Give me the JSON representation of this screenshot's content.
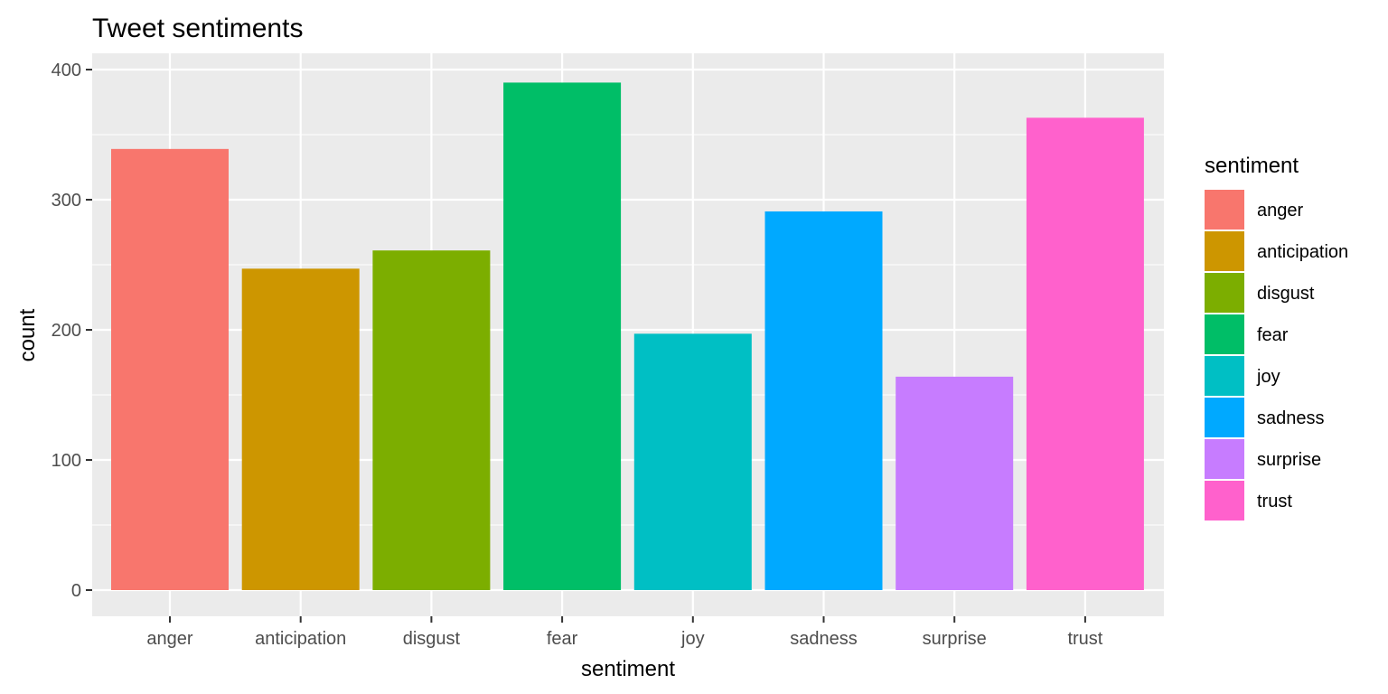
{
  "chart_data": {
    "type": "bar",
    "title": "Tweet sentiments",
    "xlabel": "sentiment",
    "ylabel": "count",
    "categories": [
      "anger",
      "anticipation",
      "disgust",
      "fear",
      "joy",
      "sadness",
      "surprise",
      "trust"
    ],
    "values": [
      339,
      247,
      261,
      390,
      197,
      291,
      164,
      363
    ],
    "colors": [
      "#F8766D",
      "#CD9600",
      "#7CAE00",
      "#00BE67",
      "#00BFC4",
      "#00A9FF",
      "#C77CFF",
      "#FF61CC"
    ],
    "ylim": [
      0,
      400
    ],
    "yticks": [
      0,
      100,
      200,
      300,
      400
    ],
    "grid": true,
    "panel_background": "#EBEBEB",
    "grid_color": "#FFFFFF",
    "legend": {
      "title": "sentiment",
      "position": "right",
      "items": [
        "anger",
        "anticipation",
        "disgust",
        "fear",
        "joy",
        "sadness",
        "surprise",
        "trust"
      ]
    }
  }
}
